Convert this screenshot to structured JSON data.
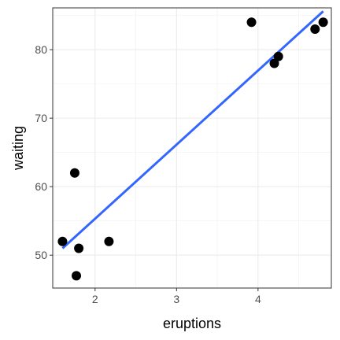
{
  "chart_data": {
    "type": "scatter",
    "title": "",
    "xlabel": "eruptions",
    "ylabel": "waiting",
    "xlim": [
      1.48,
      4.9
    ],
    "ylim": [
      45.2,
      86.1
    ],
    "x_ticks": [
      2,
      3,
      4
    ],
    "y_ticks": [
      50,
      60,
      70,
      80
    ],
    "grid": true,
    "legend": "none",
    "series": [
      {
        "points": [
          {
            "x": 1.6,
            "y": 52
          },
          {
            "x": 1.75,
            "y": 62
          },
          {
            "x": 1.77,
            "y": 47
          },
          {
            "x": 1.8,
            "y": 51
          },
          {
            "x": 2.17,
            "y": 52
          },
          {
            "x": 3.92,
            "y": 84
          },
          {
            "x": 4.2,
            "y": 78
          },
          {
            "x": 4.25,
            "y": 79
          },
          {
            "x": 4.7,
            "y": 83
          },
          {
            "x": 4.8,
            "y": 84
          }
        ],
        "color": "#000000"
      }
    ],
    "fit_line": {
      "type": "linear",
      "x": [
        1.6,
        4.8
      ],
      "y": [
        51.0,
        85.6
      ],
      "color": "#3366FF"
    }
  }
}
